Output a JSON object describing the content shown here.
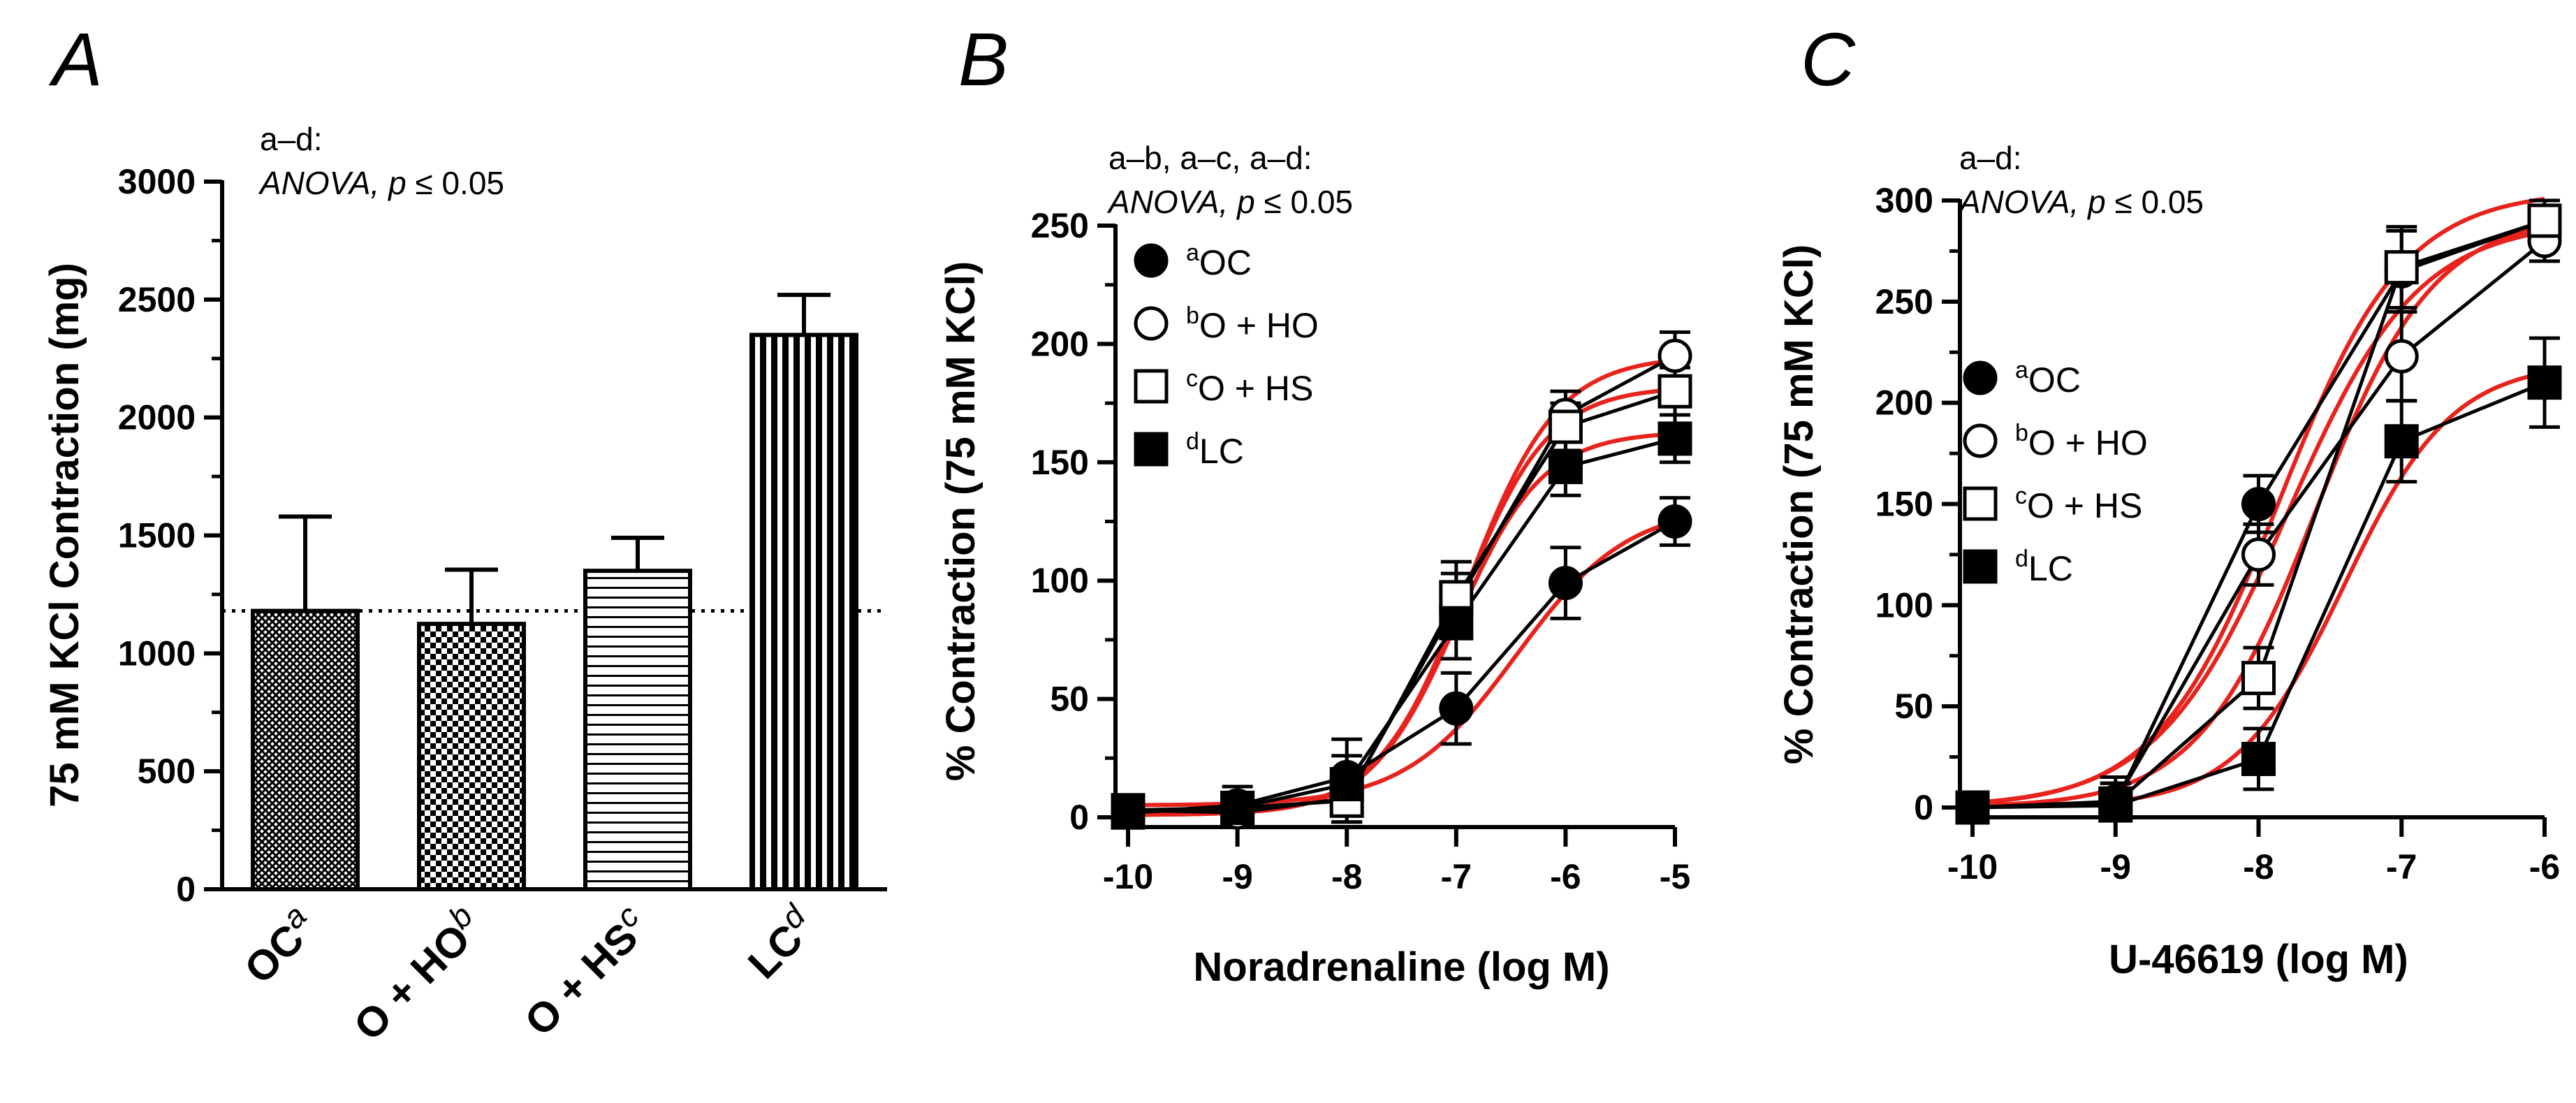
{
  "chart_data": [
    {
      "panel_letter": "A",
      "type": "bar",
      "ylabel": "75 mM KCl Contraction (mg)",
      "ylim": [
        0,
        3000
      ],
      "yticks": [
        0,
        500,
        1000,
        1500,
        2000,
        2500,
        3000
      ],
      "reference_line": 1180,
      "annotation": {
        "line1": "a–d:",
        "italic": "ANOVA,",
        "p": "p",
        "rest": " ≤ 0.05"
      },
      "categories": [
        {
          "label": "OC",
          "sup": "a",
          "value": 1180,
          "error": 400,
          "pattern": "hatchA"
        },
        {
          "label": "O + HO",
          "sup": "b",
          "value": 1125,
          "error": 230,
          "pattern": "checkB"
        },
        {
          "label": "O + HS",
          "sup": "c",
          "value": 1350,
          "error": 140,
          "pattern": "horizC"
        },
        {
          "label": "LC",
          "sup": "d",
          "value": 2350,
          "error": 170,
          "pattern": "vertD"
        }
      ]
    },
    {
      "panel_letter": "B",
      "type": "line",
      "xlabel": "Noradrenaline (log M)",
      "ylabel": "% Contraction (75 mM KCl)",
      "xlim": [
        -10,
        -5
      ],
      "ylim": [
        0,
        250
      ],
      "xticks": [
        -10,
        -9,
        -8,
        -7,
        -6,
        -5
      ],
      "yticks": [
        0,
        50,
        100,
        150,
        200,
        250
      ],
      "annotation": {
        "line1": "a–b, a–c, a–d:",
        "italic": "ANOVA,",
        "p": "p",
        "rest": " ≤ 0.05"
      },
      "series": [
        {
          "sup": "a",
          "name": "OC",
          "marker": "circle-filled",
          "x": [
            -10,
            -9,
            -8,
            -7,
            -6,
            -5
          ],
          "y": [
            2,
            5,
            17,
            46,
            99,
            125
          ],
          "err": [
            5,
            8,
            16,
            15,
            15,
            10
          ],
          "fit": {
            "bottom": 5,
            "top": 132,
            "ec50": -6.45,
            "slope": 0.85
          }
        },
        {
          "sup": "b",
          "name": "O + HO",
          "marker": "circle-open",
          "x": [
            -10,
            -9,
            -8,
            -7,
            -6,
            -5
          ],
          "y": [
            3,
            2,
            8,
            90,
            170,
            195
          ],
          "err": [
            5,
            6,
            10,
            13,
            10,
            10
          ],
          "fit": {
            "bottom": 1,
            "top": 195,
            "ec50": -6.9,
            "slope": 1.05
          }
        },
        {
          "sup": "c",
          "name": "O + HS",
          "marker": "square-open",
          "x": [
            -10,
            -9,
            -8,
            -7,
            -6,
            -5
          ],
          "y": [
            3,
            4,
            7,
            93,
            165,
            180
          ],
          "err": [
            5,
            6,
            10,
            15,
            10,
            10
          ],
          "fit": {
            "bottom": 1,
            "top": 182,
            "ec50": -6.95,
            "slope": 1.1
          }
        },
        {
          "sup": "d",
          "name": "LC",
          "marker": "square-filled",
          "x": [
            -10,
            -9,
            -8,
            -7,
            -6,
            -5
          ],
          "y": [
            2,
            4,
            14,
            82,
            148,
            160
          ],
          "err": [
            5,
            6,
            12,
            15,
            12,
            10
          ],
          "fit": {
            "bottom": 1,
            "top": 163,
            "ec50": -7.0,
            "slope": 1.1
          }
        }
      ]
    },
    {
      "panel_letter": "C",
      "type": "line",
      "xlabel": "U-46619 (log M)",
      "ylabel": "% Contraction (75 mM KCl)",
      "xlim": [
        -10,
        -6
      ],
      "ylim": [
        0,
        300
      ],
      "xticks": [
        -10,
        -9,
        -8,
        -7,
        -6
      ],
      "yticks": [
        0,
        50,
        100,
        150,
        200,
        250,
        300
      ],
      "annotation": {
        "line1": "a–d:",
        "italic": "ANOVA,",
        "p": "p",
        "rest": " ≤ 0.05"
      },
      "series": [
        {
          "sup": "a",
          "name": "OC",
          "marker": "circle-filled",
          "x": [
            -10,
            -9,
            -8,
            -7,
            -6
          ],
          "y": [
            0,
            2,
            150,
            265,
            290
          ],
          "err": [
            3,
            10,
            14,
            20,
            10
          ],
          "fit": {
            "bottom": 0,
            "top": 305,
            "ec50": -7.85,
            "slope": 1.0
          }
        },
        {
          "sup": "b",
          "name": "O + HO",
          "marker": "circle-open",
          "x": [
            -10,
            -9,
            -8,
            -7,
            -6
          ],
          "y": [
            0,
            3,
            125,
            223,
            280
          ],
          "err": [
            3,
            12,
            15,
            22,
            10
          ],
          "fit": {
            "bottom": 0,
            "top": 290,
            "ec50": -7.8,
            "slope": 0.95
          }
        },
        {
          "sup": "c",
          "name": "O + HS",
          "marker": "square-open",
          "x": [
            -10,
            -9,
            -8,
            -7,
            -6
          ],
          "y": [
            0,
            2,
            64,
            267,
            290
          ],
          "err": [
            3,
            10,
            15,
            20,
            10
          ],
          "fit": {
            "bottom": 0,
            "top": 293,
            "ec50": -7.6,
            "slope": 1.05
          }
        },
        {
          "sup": "d",
          "name": "LC",
          "marker": "square-filled",
          "x": [
            -10,
            -9,
            -8,
            -7,
            -6
          ],
          "y": [
            0,
            1,
            24,
            181,
            210
          ],
          "err": [
            3,
            8,
            15,
            20,
            22
          ],
          "fit": {
            "bottom": 0,
            "top": 220,
            "ec50": -7.4,
            "slope": 1.15
          }
        }
      ]
    }
  ],
  "colors": {
    "axis": "#000000",
    "fit_curve": "#e8221c",
    "data_line": "#000000"
  }
}
